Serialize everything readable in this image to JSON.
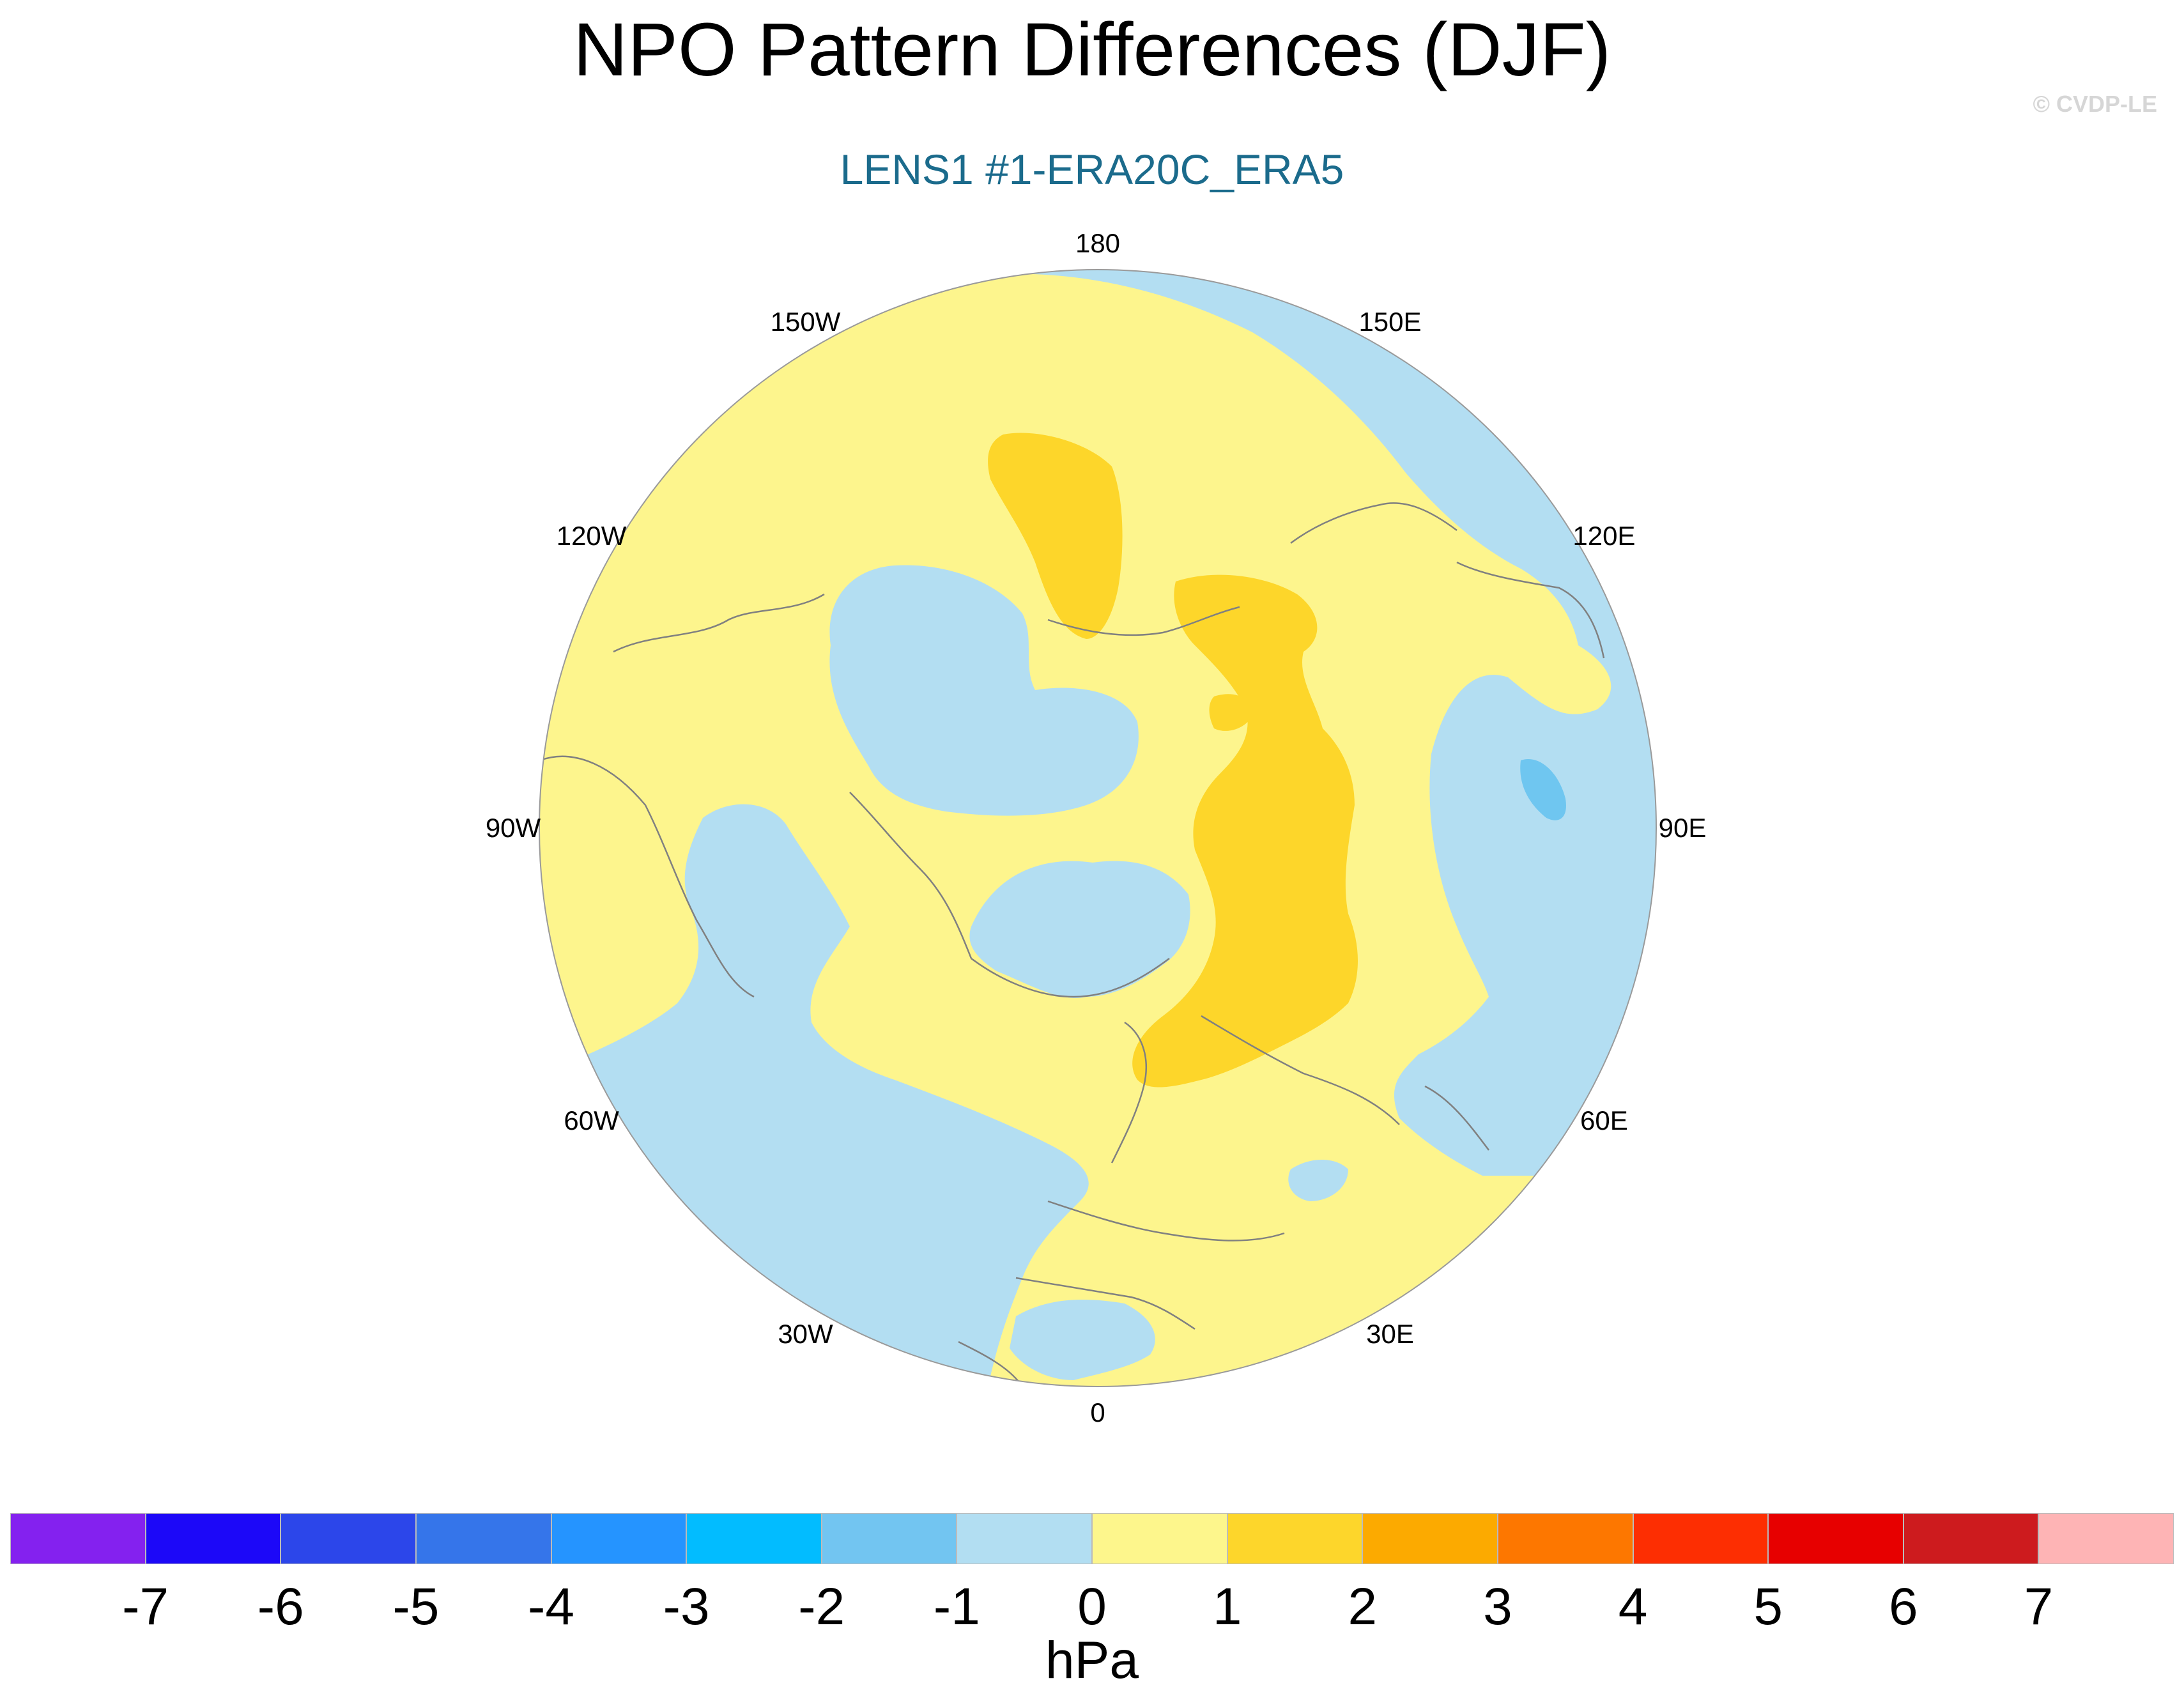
{
  "title": "NPO Pattern Differences (DJF)",
  "subtitle": "LENS1 #1-ERA20C_ERA5",
  "copyright": "© CVDP-LE",
  "colors": {
    "subtitle": "#1b6b8c",
    "ocean_neg": "#b3def2",
    "land_pos": "#fdf58d",
    "pos_1_2": "#fdd62a",
    "neg_2_1": "#6fc6f0",
    "coast": "#808080",
    "rim": "#9a9a9a"
  },
  "map": {
    "projection": "north-polar-stereographic",
    "longitude_labels": [
      "180",
      "150E",
      "120E",
      "90E",
      "60E",
      "30E",
      "0",
      "30W",
      "60W",
      "90W",
      "120W",
      "150W"
    ],
    "field": "sea level pressure difference"
  },
  "colorbar": {
    "colors": [
      "#8421ef",
      "#1c08f8",
      "#2c46ea",
      "#3575ea",
      "#2594ff",
      "#02bcff",
      "#72c5f1",
      "#b2def2",
      "#fdf68c",
      "#fdd62b",
      "#fcaa00",
      "#fd7700",
      "#fd2e02",
      "#e70000",
      "#cd1b1e",
      "#feb4b5"
    ],
    "labels": [
      "-7",
      "-6",
      "-5",
      "-4",
      "-3",
      "-2",
      "-1",
      "0",
      "1",
      "2",
      "3",
      "4",
      "5",
      "6",
      "7"
    ],
    "units": "hPa"
  }
}
